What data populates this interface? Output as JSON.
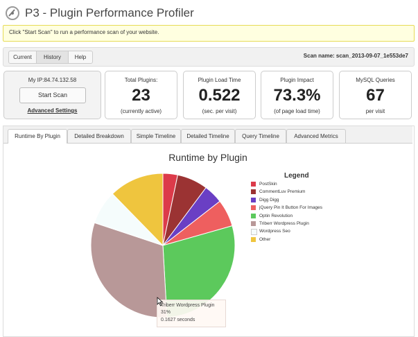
{
  "header": {
    "title": "P3 - Plugin Performance Profiler",
    "icon": "speedometer-icon"
  },
  "notice": {
    "text": "Click \"Start Scan\" to run a performance scan of your website."
  },
  "top_tabs": [
    {
      "label": "Current"
    },
    {
      "label": "History"
    },
    {
      "label": "Help"
    }
  ],
  "scan_name": "Scan name: scan_2013-09-07_1e553de7",
  "scan_box": {
    "ip": "My IP:84.74.132.58",
    "start_button": "Start Scan",
    "advanced_link": "Advanced Settings"
  },
  "stats": {
    "plugins": {
      "label": "Total Plugins:",
      "value": "23",
      "sub": "(currently active)"
    },
    "load_time": {
      "label": "Plugin Load Time",
      "value": "0.522",
      "sub": "(sec. per visit)"
    },
    "impact": {
      "label": "Plugin Impact",
      "value": "73.3%",
      "sub": "(of page load time)"
    },
    "mysql": {
      "label": "MySQL Queries",
      "value": "67",
      "sub": "per visit"
    }
  },
  "chart_tabs": [
    {
      "label": "Runtime By Plugin"
    },
    {
      "label": "Detailed Breakdown"
    },
    {
      "label": "Simple Timeline"
    },
    {
      "label": "Detailed Timeline"
    },
    {
      "label": "Query Timeline"
    },
    {
      "label": "Advanced Metrics"
    }
  ],
  "chart_data": {
    "type": "pie",
    "title": "Runtime by Plugin",
    "legend_title": "Legend",
    "legend_position": "right",
    "categories": [
      "PostSkin",
      "CommentLuv Premium",
      "Digg Digg",
      "jQuery Pin It Button For Images",
      "Optin Revolution",
      "Triberr Wordpress Plugin",
      "Wordpress Seo",
      "Other"
    ],
    "values": [
      3.3,
      6.9,
      4.3,
      6.1,
      28.5,
      31,
      7.6,
      12.3
    ],
    "colors": [
      "#dc3b4a",
      "#9b3333",
      "#6a3fc4",
      "#ee5f5f",
      "#5cc95c",
      "#b89898",
      "#f5fcfc",
      "#efc53e"
    ]
  },
  "tooltip": {
    "name": "Triberr Wordpress Plugin",
    "percent": "31%",
    "seconds": "0.1627 seconds"
  }
}
